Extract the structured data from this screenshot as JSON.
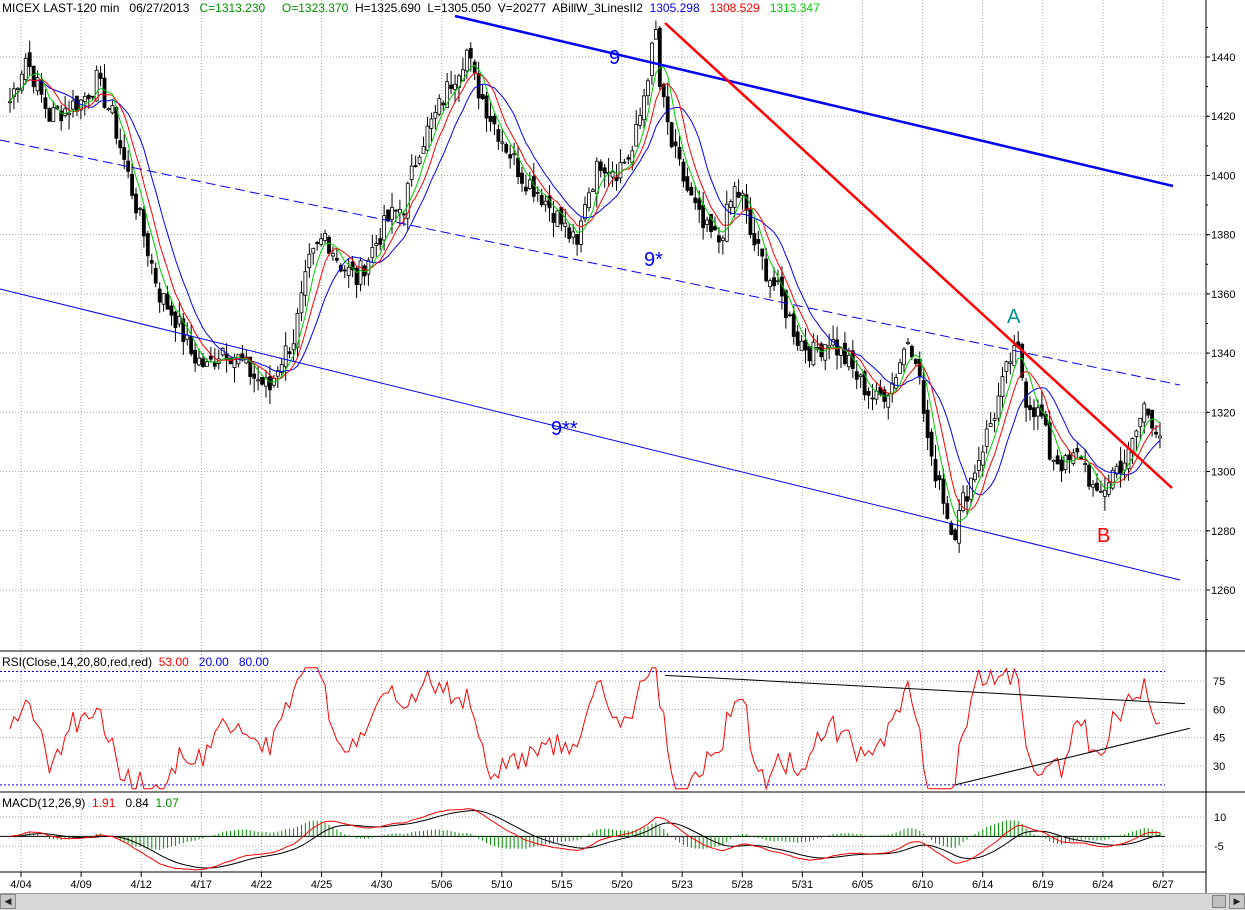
{
  "header": {
    "symbol": "MICEX LAST-120 min",
    "date": "06/27/2013",
    "close": "C=1313.230",
    "open": "O=1323.370",
    "high": "H=1325.690",
    "low": "L=1305.050",
    "volume": "V=20277",
    "study": "ABillW_3LinesII2",
    "line1": "1305.298",
    "line2": "1308.529",
    "line3": "1313.347"
  },
  "rsi_header": {
    "label": "RSI(Close,14,20,80,red,red)",
    "value": "53.00",
    "low": "20.00",
    "high": "80.00"
  },
  "macd_header": {
    "label": "MACD(12,26,9)",
    "macd": "1.91",
    "signal": "0.84",
    "hist": "1.07"
  },
  "annotations": {
    "channel_top": "9",
    "channel_mid": "9*",
    "channel_low": "9**",
    "point_a": "A",
    "point_b": "B"
  },
  "colors": {
    "up": "#000000",
    "down": "#000000",
    "green": "#00cc00",
    "red": "#ff0000",
    "blue": "#0000ff",
    "grid": "#b0b0b0",
    "trend_red": "#ff0000",
    "teal": "#009090"
  },
  "chart_data": [
    {
      "type": "candlestick",
      "title": "MICEX LAST-120 min",
      "ylim": [
        1240,
        1455
      ],
      "yticks": [
        1260,
        1280,
        1300,
        1320,
        1340,
        1360,
        1380,
        1400,
        1420,
        1440
      ],
      "xticks": [
        "4/04",
        "4/09",
        "4/12",
        "4/17",
        "4/22",
        "4/25",
        "4/30",
        "5/06",
        "5/10",
        "5/15",
        "5/20",
        "5/23",
        "5/28",
        "5/31",
        "6/05",
        "6/10",
        "6/14",
        "6/19",
        "6/24",
        "6/27"
      ],
      "close_waypoints": [
        [
          0,
          1425
        ],
        [
          4,
          1440
        ],
        [
          10,
          1420
        ],
        [
          18,
          1425
        ],
        [
          22,
          1432
        ],
        [
          26,
          1420
        ],
        [
          30,
          1400
        ],
        [
          34,
          1380
        ],
        [
          38,
          1360
        ],
        [
          42,
          1352
        ],
        [
          46,
          1340
        ],
        [
          50,
          1335
        ],
        [
          54,
          1342
        ],
        [
          58,
          1338
        ],
        [
          62,
          1332
        ],
        [
          66,
          1328
        ],
        [
          68,
          1336
        ],
        [
          72,
          1345
        ],
        [
          76,
          1370
        ],
        [
          80,
          1380
        ],
        [
          84,
          1370
        ],
        [
          88,
          1365
        ],
        [
          92,
          1375
        ],
        [
          96,
          1385
        ],
        [
          100,
          1390
        ],
        [
          104,
          1410
        ],
        [
          108,
          1420
        ],
        [
          112,
          1432
        ],
        [
          116,
          1442
        ],
        [
          118,
          1432
        ],
        [
          122,
          1420
        ],
        [
          126,
          1410
        ],
        [
          130,
          1400
        ],
        [
          134,
          1395
        ],
        [
          138,
          1388
        ],
        [
          142,
          1380
        ],
        [
          144,
          1375
        ],
        [
          146,
          1392
        ],
        [
          150,
          1405
        ],
        [
          154,
          1402
        ],
        [
          158,
          1408
        ],
        [
          160,
          1420
        ],
        [
          162,
          1435
        ],
        [
          164,
          1448
        ],
        [
          165,
          1430
        ],
        [
          168,
          1410
        ],
        [
          172,
          1395
        ],
        [
          176,
          1382
        ],
        [
          180,
          1378
        ],
        [
          184,
          1395
        ],
        [
          186,
          1392
        ],
        [
          188,
          1380
        ],
        [
          192,
          1368
        ],
        [
          196,
          1358
        ],
        [
          200,
          1345
        ],
        [
          204,
          1340
        ],
        [
          208,
          1345
        ],
        [
          212,
          1338
        ],
        [
          216,
          1330
        ],
        [
          220,
          1324
        ],
        [
          224,
          1330
        ],
        [
          228,
          1345
        ],
        [
          230,
          1340
        ],
        [
          232,
          1320
        ],
        [
          234,
          1302
        ],
        [
          236,
          1298
        ],
        [
          238,
          1285
        ],
        [
          240,
          1280
        ],
        [
          242,
          1290
        ],
        [
          246,
          1305
        ],
        [
          250,
          1320
        ],
        [
          254,
          1338
        ],
        [
          256,
          1340
        ],
        [
          258,
          1325
        ],
        [
          262,
          1318
        ],
        [
          264,
          1306
        ],
        [
          268,
          1302
        ],
        [
          272,
          1306
        ],
        [
          276,
          1290
        ],
        [
          280,
          1300
        ],
        [
          284,
          1305
        ],
        [
          288,
          1322
        ],
        [
          290,
          1318
        ],
        [
          292,
          1313
        ]
      ],
      "overlays": [
        "green MA",
        "red MA",
        "blue MA"
      ],
      "trendlines": [
        {
          "name": "9",
          "from": [
            455,
            16
          ],
          "to": [
            1173,
            186
          ]
        },
        {
          "name": "9*",
          "from": [
            0,
            140
          ],
          "to": [
            1180,
            385
          ]
        },
        {
          "name": "9**",
          "from": [
            0,
            289
          ],
          "to": [
            1180,
            580
          ]
        },
        {
          "name": "red downtrend",
          "from": [
            665,
            23
          ],
          "to": [
            1172,
            488
          ]
        }
      ]
    },
    {
      "type": "line",
      "title": "RSI(Close,14,20,80,red,red)",
      "ylim": [
        0,
        100
      ],
      "yticks": [
        30,
        45,
        60,
        75
      ],
      "levels": [
        20,
        80
      ],
      "last_value": 53.0
    },
    {
      "type": "line",
      "title": "MACD(12,26,9)",
      "yticks": [
        -5,
        10
      ],
      "last_values": {
        "macd": 1.91,
        "signal": 0.84,
        "histogram": 1.07
      }
    }
  ]
}
